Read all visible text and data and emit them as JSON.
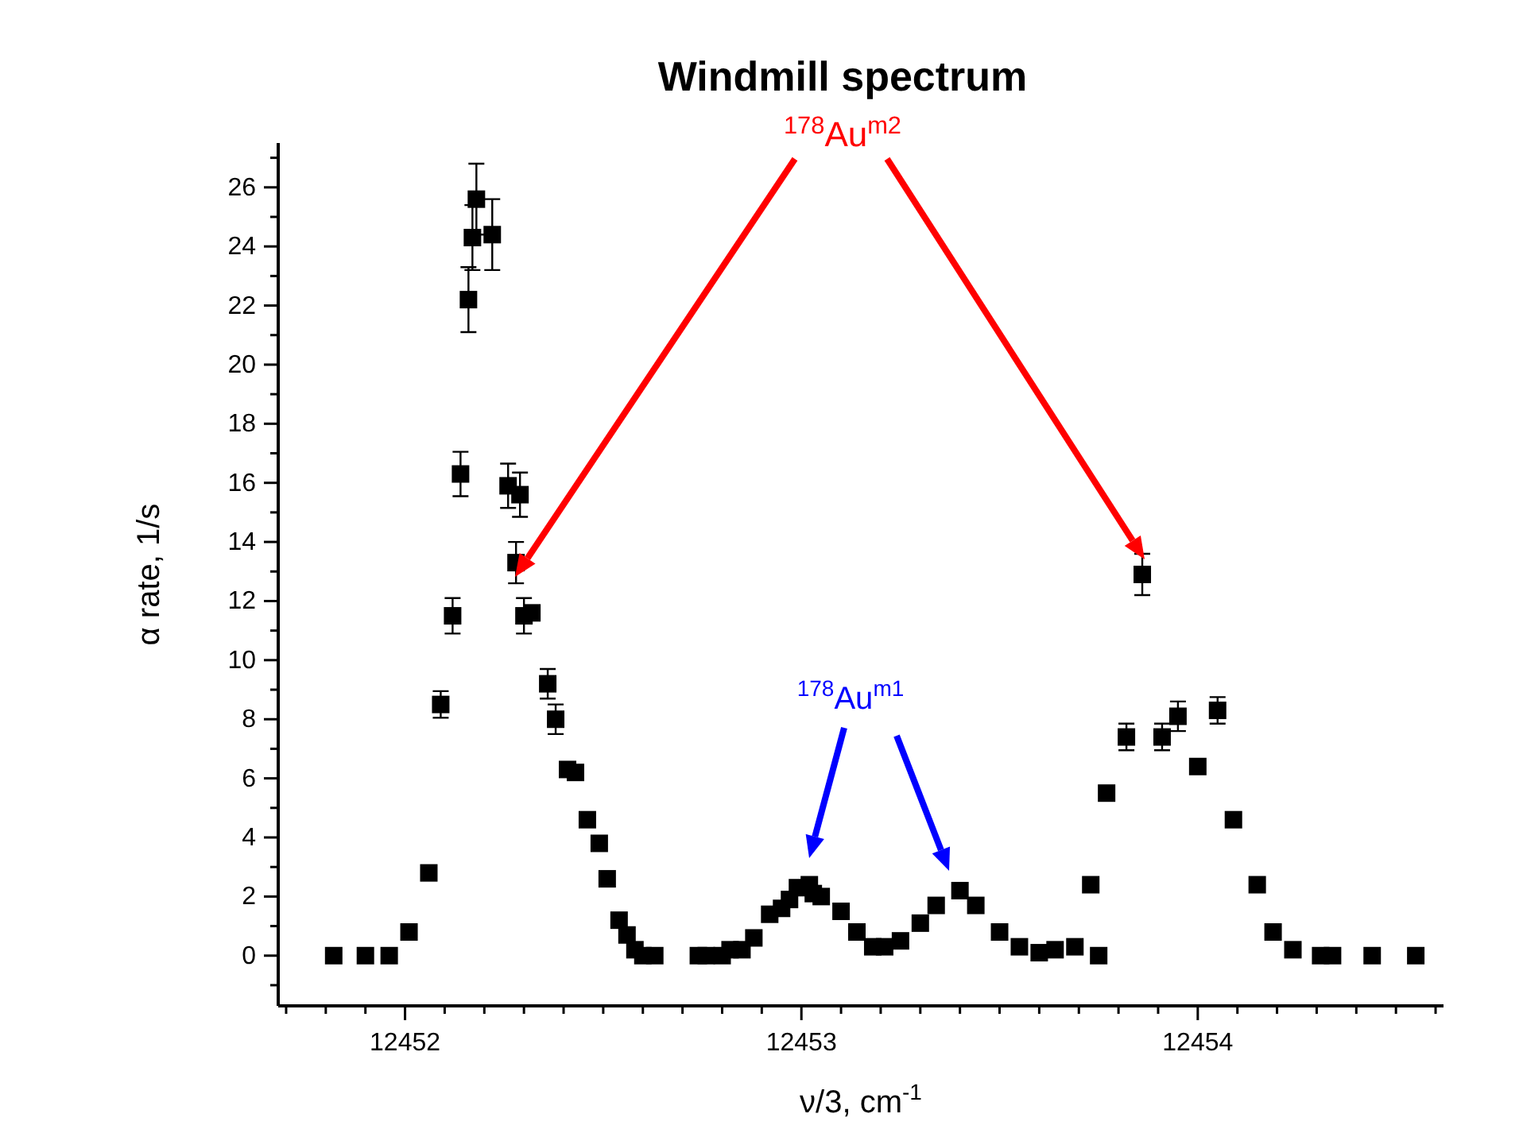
{
  "chart_data": {
    "type": "scatter",
    "title": "Windmill spectrum",
    "xlabel": "ν/3, cm$^{-1}$",
    "ylabel": "α rate, 1/s",
    "annotations": [
      "$^{178}$Au$^{m2}$",
      "$^{178}$Au$^{m1}$"
    ],
    "marker": "square",
    "grid": false,
    "xlim": [
      12451.68,
      12454.62
    ],
    "ylim": [
      -1.7,
      27.5
    ],
    "xticks": [
      {
        "value": 12451.7,
        "label": null
      },
      {
        "value": 12451.8,
        "label": null
      },
      {
        "value": 12451.9,
        "label": null
      },
      12452,
      {
        "value": 12452.1,
        "label": null
      },
      {
        "value": 12452.2,
        "label": null
      },
      {
        "value": 12452.3,
        "label": null
      },
      {
        "value": 12452.4,
        "label": null
      },
      {
        "value": 12452.5,
        "label": null
      },
      {
        "value": 12452.6,
        "label": null
      },
      {
        "value": 12452.7,
        "label": null
      },
      {
        "value": 12452.8,
        "label": null
      },
      {
        "value": 12452.9,
        "label": null
      },
      12453,
      {
        "value": 12453.1,
        "label": null
      },
      {
        "value": 12453.2,
        "label": null
      },
      {
        "value": 12453.3,
        "label": null
      },
      {
        "value": 12453.4,
        "label": null
      },
      {
        "value": 12453.5,
        "label": null
      },
      {
        "value": 12453.6,
        "label": null
      },
      {
        "value": 12453.7,
        "label": null
      },
      {
        "value": 12453.8,
        "label": null
      },
      {
        "value": 12453.9,
        "label": null
      },
      12454,
      {
        "value": 12454.1,
        "label": null
      },
      {
        "value": 12454.2,
        "label": null
      },
      {
        "value": 12454.3,
        "label": null
      },
      {
        "value": 12454.4,
        "label": null
      },
      {
        "value": 12454.5,
        "label": null
      },
      {
        "value": 12454.6,
        "label": null
      }
    ],
    "yticks": [
      {
        "value": -1,
        "label": null
      },
      0,
      {
        "value": 1,
        "label": null
      },
      2,
      {
        "value": 3,
        "label": null
      },
      4,
      {
        "value": 5,
        "label": null
      },
      6,
      {
        "value": 7,
        "label": null
      },
      8,
      {
        "value": 9,
        "label": null
      },
      10,
      {
        "value": 11,
        "label": null
      },
      12,
      {
        "value": 13,
        "label": null
      },
      14,
      {
        "value": 15,
        "label": null
      },
      16,
      {
        "value": 17,
        "label": null
      },
      18,
      {
        "value": 19,
        "label": null
      },
      20,
      {
        "value": 21,
        "label": null
      },
      22,
      {
        "value": 23,
        "label": null
      },
      24,
      {
        "value": 25,
        "label": null
      },
      26,
      {
        "value": 27,
        "label": null
      }
    ],
    "series": [
      {
        "color": "#000000",
        "x": [
          12451.82,
          12451.9,
          12451.96,
          12452.01,
          12452.06,
          12452.09,
          12452.12,
          12452.14,
          12452.16,
          12452.17,
          12452.18,
          12452.22,
          12452.26,
          12452.29,
          12452.28,
          12452.3,
          12452.32,
          12452.36,
          12452.38,
          12452.41,
          12452.43,
          12452.46,
          12452.49,
          12452.51,
          12452.54,
          12452.56,
          12452.58,
          12452.6,
          12452.63,
          12452.74,
          12452.76,
          12452.8,
          12452.82,
          12452.85,
          12452.88,
          12452.92,
          12452.95,
          12452.97,
          12452.99,
          12453.02,
          12453.03,
          12453.05,
          12453.1,
          12453.14,
          12453.18,
          12453.21,
          12453.25,
          12453.3,
          12453.34,
          12453.4,
          12453.44,
          12453.5,
          12453.55,
          12453.6,
          12453.64,
          12453.69,
          12453.75,
          12453.73,
          12453.77,
          12453.82,
          12453.86,
          12453.91,
          12453.95,
          12454.05,
          12454.0,
          12454.09,
          12454.15,
          12454.19,
          12454.24,
          12454.31,
          12454.34,
          12454.44,
          12454.55
        ],
        "values": [
          0,
          0,
          0,
          0.8,
          2.8,
          8.5,
          11.5,
          16.3,
          22.2,
          24.3,
          25.6,
          24.4,
          15.9,
          15.6,
          13.3,
          11.5,
          11.6,
          9.2,
          8.0,
          6.3,
          6.2,
          4.6,
          3.8,
          2.6,
          1.2,
          0.7,
          0.2,
          0,
          0,
          0,
          0,
          0,
          0.2,
          0.2,
          0.6,
          1.4,
          1.6,
          1.9,
          2.3,
          2.4,
          2.1,
          2.0,
          1.5,
          0.8,
          0.3,
          0.3,
          0.5,
          1.1,
          1.7,
          2.2,
          1.7,
          0.8,
          0.3,
          0.1,
          0.2,
          0.3,
          0,
          2.4,
          5.5,
          7.4,
          12.9,
          7.4,
          8.1,
          8.3,
          6.4,
          4.6,
          2.4,
          0.8,
          0.2,
          0,
          0,
          0,
          0
        ],
        "errors": [
          null,
          null,
          null,
          null,
          null,
          0.45,
          0.6,
          0.75,
          1.1,
          1.1,
          1.2,
          1.2,
          0.75,
          0.75,
          0.7,
          0.6,
          null,
          0.5,
          0.5,
          null,
          null,
          null,
          null,
          null,
          null,
          null,
          null,
          null,
          null,
          null,
          null,
          null,
          null,
          null,
          null,
          null,
          null,
          null,
          null,
          null,
          null,
          null,
          null,
          null,
          null,
          null,
          null,
          null,
          null,
          null,
          null,
          null,
          null,
          null,
          null,
          null,
          null,
          null,
          null,
          0.45,
          0.7,
          0.45,
          0.5,
          0.45,
          null,
          null,
          null,
          null,
          null,
          null,
          null,
          null,
          null
        ]
      }
    ]
  }
}
